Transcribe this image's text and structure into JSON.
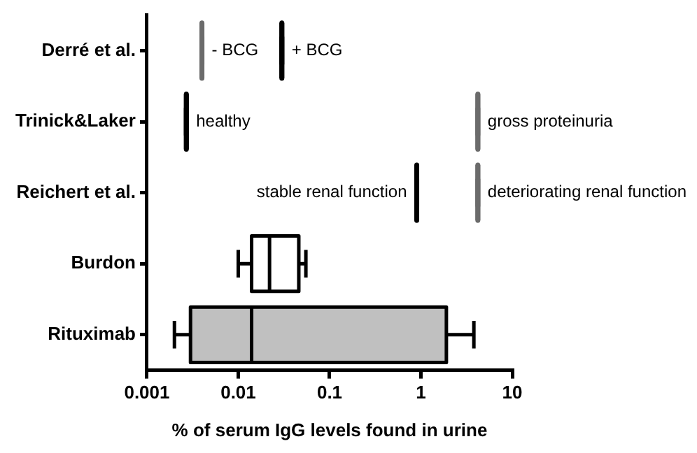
{
  "chart_data": {
    "type": "box",
    "orientation": "horizontal",
    "categories": [
      "Derré et al.",
      "Trinick&Laker",
      "Reichert et al.",
      "Burdon",
      "Rituximab"
    ],
    "xlabel": "% of serum IgG levels found in urine",
    "log": "x",
    "xlim": [
      0.001,
      10
    ],
    "xticks": [
      0.001,
      0.01,
      0.1,
      1,
      10
    ],
    "grid": false,
    "legend": false,
    "series": [
      {
        "type": "box",
        "colors": [
          null,
          null,
          null,
          "#ffffff",
          "#c0c0c0"
        ],
        "boxes": [
          null,
          null,
          null,
          {
            "low": 0.01,
            "q1": 0.014,
            "median": 0.022,
            "q3": 0.046,
            "high": 0.055
          },
          {
            "low": 0.002,
            "q1": 0.003,
            "median": 0.014,
            "q3": 1.9,
            "high": 3.8
          }
        ]
      },
      {
        "color": "#000000",
        "boxes": [
          {
            "low": 0.03,
            "q1": 0.03,
            "median": 0.03,
            "q3": 0.03,
            "high": 0.03
          },
          {
            "low": 0.0027,
            "q1": 0.0027,
            "median": 0.0027,
            "q3": 0.0027,
            "high": 0.0027
          },
          {
            "low": 0.9,
            "q1": 0.9,
            "median": 0.9,
            "q3": 0.9,
            "high": 0.9
          },
          null,
          null
        ]
      },
      {
        "color": "#6b6b6b",
        "boxes": [
          {
            "low": 0.004,
            "q1": 0.004,
            "median": 0.004,
            "q3": 0.004,
            "high": 0.004
          },
          {
            "low": 4.2,
            "q1": 4.2,
            "median": 4.2,
            "q3": 4.2,
            "high": 4.2
          },
          {
            "low": 4.2,
            "q1": 4.2,
            "median": 4.2,
            "q3": 4.2,
            "high": 4.2
          },
          null,
          null
        ]
      }
    ],
    "annotations": [
      {
        "text": "- BCG",
        "x": 0.004,
        "y": "Derré et al."
      },
      {
        "text": "+ BCG",
        "x": 0.03,
        "y": "Derré et al."
      },
      {
        "text": "healthy",
        "x": 0.0027,
        "y": "Trinick&Laker"
      },
      {
        "text": "gross proteinuria",
        "x": 4.2,
        "y": "Trinick&Laker"
      },
      {
        "text": "stable renal function",
        "x": 0.9,
        "y": "Reichert et al."
      },
      {
        "text": "deteriorating renal function",
        "x": 4.2,
        "y": "Reichert et al."
      }
    ]
  }
}
